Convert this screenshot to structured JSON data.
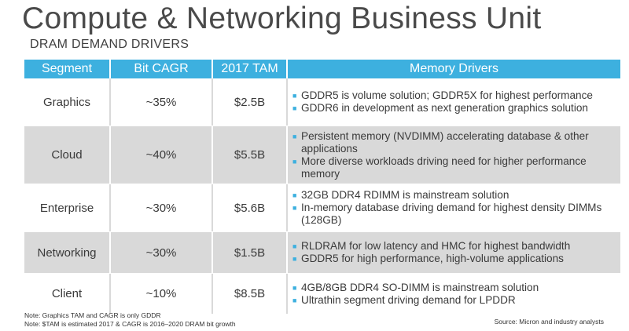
{
  "title": "Compute & Networking Business Unit",
  "subtitle": "DRAM DEMAND DRIVERS",
  "table": {
    "headers": [
      "Segment",
      "Bit CAGR",
      "2017 TAM",
      "Memory Drivers"
    ],
    "rows": [
      {
        "segment": "Graphics",
        "cagr": "~35%",
        "tam": "$2.5B",
        "drivers": [
          "GDDR5 is volume solution; GDDR5X for highest performance",
          "GDDR6 in development as next generation graphics solution"
        ]
      },
      {
        "segment": "Cloud",
        "cagr": "~40%",
        "tam": "$5.5B",
        "drivers": [
          "Persistent memory (NVDIMM) accelerating database & other applications",
          "More diverse workloads driving need for higher performance memory"
        ]
      },
      {
        "segment": "Enterprise",
        "cagr": "~30%",
        "tam": "$5.6B",
        "drivers": [
          "32GB DDR4 RDIMM is mainstream solution",
          "In-memory database driving demand for highest density DIMMs (128GB)"
        ]
      },
      {
        "segment": "Networking",
        "cagr": "~30%",
        "tam": "$1.5B",
        "drivers": [
          "RLDRAM for low latency and HMC for highest bandwidth",
          "GDDR5 for high performance, high-volume applications"
        ]
      },
      {
        "segment": "Client",
        "cagr": "~10%",
        "tam": "$8.5B",
        "drivers": [
          "4GB/8GB DDR4 SO-DIMM is mainstream solution",
          "Ultrathin segment driving demand for LPDDR"
        ]
      }
    ]
  },
  "notes": [
    "Note: Graphics TAM and CAGR is only GDDR",
    "Note: $TAM is estimated 2017 & CAGR is 2016–2020 DRAM bit growth"
  ],
  "source": "Source: Micron and industry analysts",
  "colors": {
    "header": "#3db0df",
    "shaded_row": "#d9d9d9"
  }
}
